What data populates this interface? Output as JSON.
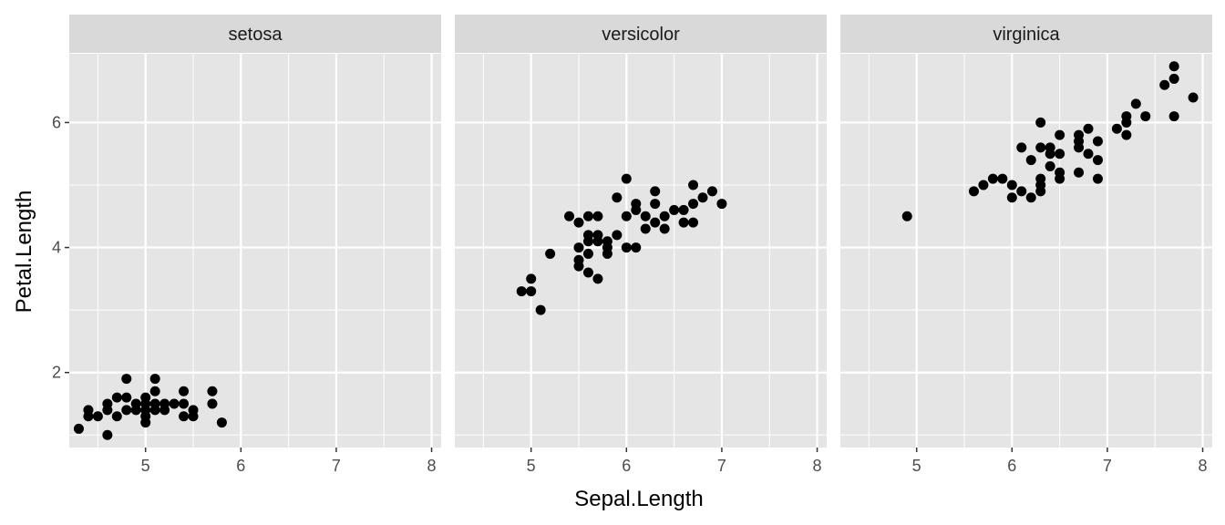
{
  "chart_data": {
    "type": "scatter",
    "facet_by": "Species",
    "xlabel": "Sepal.Length",
    "ylabel": "Petal.Length",
    "xlim": [
      4.2,
      8.1
    ],
    "ylim": [
      0.8,
      7.1
    ],
    "x_ticks": [
      5,
      6,
      7,
      8
    ],
    "x_tick_labels": [
      "5",
      "6",
      "7",
      "8"
    ],
    "y_ticks": [
      2,
      4,
      6
    ],
    "y_tick_labels": [
      "2",
      "4",
      "6"
    ],
    "grid": true,
    "colors": {
      "panel_bg": "#e5e5e5",
      "strip_bg": "#d9d9d9",
      "grid": "#ffffff",
      "point": "#000000"
    },
    "panels": [
      {
        "label": "setosa",
        "points": [
          [
            4.3,
            1.1
          ],
          [
            4.4,
            1.4
          ],
          [
            4.4,
            1.3
          ],
          [
            4.5,
            1.3
          ],
          [
            4.6,
            1.0
          ],
          [
            4.6,
            1.4
          ],
          [
            4.6,
            1.5
          ],
          [
            4.7,
            1.3
          ],
          [
            4.7,
            1.6
          ],
          [
            4.8,
            1.4
          ],
          [
            4.8,
            1.6
          ],
          [
            4.8,
            1.9
          ],
          [
            4.9,
            1.4
          ],
          [
            4.9,
            1.5
          ],
          [
            5.0,
            1.2
          ],
          [
            5.0,
            1.3
          ],
          [
            5.0,
            1.4
          ],
          [
            5.0,
            1.5
          ],
          [
            5.0,
            1.6
          ],
          [
            5.1,
            1.4
          ],
          [
            5.1,
            1.5
          ],
          [
            5.1,
            1.7
          ],
          [
            5.1,
            1.9
          ],
          [
            5.2,
            1.4
          ],
          [
            5.2,
            1.5
          ],
          [
            5.3,
            1.5
          ],
          [
            5.4,
            1.3
          ],
          [
            5.4,
            1.5
          ],
          [
            5.4,
            1.7
          ],
          [
            5.5,
            1.3
          ],
          [
            5.5,
            1.4
          ],
          [
            5.7,
            1.5
          ],
          [
            5.7,
            1.7
          ],
          [
            5.8,
            1.2
          ]
        ]
      },
      {
        "label": "versicolor",
        "points": [
          [
            4.9,
            3.3
          ],
          [
            5.0,
            3.3
          ],
          [
            5.0,
            3.5
          ],
          [
            5.1,
            3.0
          ],
          [
            5.2,
            3.9
          ],
          [
            5.4,
            4.5
          ],
          [
            5.5,
            3.7
          ],
          [
            5.5,
            3.8
          ],
          [
            5.5,
            4.0
          ],
          [
            5.5,
            4.4
          ],
          [
            5.6,
            3.6
          ],
          [
            5.6,
            3.9
          ],
          [
            5.6,
            4.1
          ],
          [
            5.6,
            4.2
          ],
          [
            5.6,
            4.5
          ],
          [
            5.7,
            3.5
          ],
          [
            5.7,
            4.1
          ],
          [
            5.7,
            4.2
          ],
          [
            5.7,
            4.5
          ],
          [
            5.8,
            3.9
          ],
          [
            5.8,
            4.0
          ],
          [
            5.8,
            4.1
          ],
          [
            5.9,
            4.2
          ],
          [
            5.9,
            4.8
          ],
          [
            6.0,
            4.0
          ],
          [
            6.0,
            4.5
          ],
          [
            6.0,
            5.1
          ],
          [
            6.1,
            4.0
          ],
          [
            6.1,
            4.6
          ],
          [
            6.1,
            4.7
          ],
          [
            6.2,
            4.3
          ],
          [
            6.2,
            4.5
          ],
          [
            6.3,
            4.4
          ],
          [
            6.3,
            4.7
          ],
          [
            6.3,
            4.9
          ],
          [
            6.4,
            4.3
          ],
          [
            6.4,
            4.5
          ],
          [
            6.5,
            4.6
          ],
          [
            6.6,
            4.4
          ],
          [
            6.6,
            4.6
          ],
          [
            6.7,
            4.4
          ],
          [
            6.7,
            4.7
          ],
          [
            6.7,
            5.0
          ],
          [
            6.8,
            4.8
          ],
          [
            6.9,
            4.9
          ],
          [
            7.0,
            4.7
          ]
        ]
      },
      {
        "label": "virginica",
        "points": [
          [
            4.9,
            4.5
          ],
          [
            5.6,
            4.9
          ],
          [
            5.7,
            5.0
          ],
          [
            5.8,
            5.1
          ],
          [
            5.9,
            5.1
          ],
          [
            6.0,
            4.8
          ],
          [
            6.0,
            5.0
          ],
          [
            6.1,
            4.9
          ],
          [
            6.1,
            5.6
          ],
          [
            6.2,
            4.8
          ],
          [
            6.2,
            5.4
          ],
          [
            6.3,
            4.9
          ],
          [
            6.3,
            5.0
          ],
          [
            6.3,
            5.1
          ],
          [
            6.3,
            5.6
          ],
          [
            6.3,
            6.0
          ],
          [
            6.4,
            5.3
          ],
          [
            6.4,
            5.5
          ],
          [
            6.4,
            5.6
          ],
          [
            6.5,
            5.1
          ],
          [
            6.5,
            5.2
          ],
          [
            6.5,
            5.5
          ],
          [
            6.5,
            5.8
          ],
          [
            6.7,
            5.2
          ],
          [
            6.7,
            5.6
          ],
          [
            6.7,
            5.7
          ],
          [
            6.7,
            5.8
          ],
          [
            6.8,
            5.5
          ],
          [
            6.8,
            5.9
          ],
          [
            6.9,
            5.1
          ],
          [
            6.9,
            5.4
          ],
          [
            6.9,
            5.7
          ],
          [
            7.1,
            5.9
          ],
          [
            7.2,
            5.8
          ],
          [
            7.2,
            6.0
          ],
          [
            7.2,
            6.1
          ],
          [
            7.3,
            6.3
          ],
          [
            7.4,
            6.1
          ],
          [
            7.6,
            6.6
          ],
          [
            7.7,
            6.1
          ],
          [
            7.7,
            6.7
          ],
          [
            7.7,
            6.9
          ],
          [
            7.9,
            6.4
          ]
        ]
      }
    ]
  }
}
